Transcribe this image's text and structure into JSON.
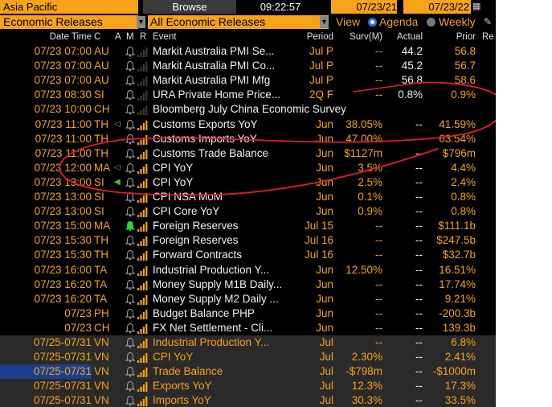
{
  "topbar": {
    "region": "Asia Pacific",
    "browse": "Browse",
    "time": "09:22:57",
    "date_from": "07/23/21",
    "date_to": "07/23/22"
  },
  "filters": {
    "category": "Economic Releases",
    "releases": "All Economic Releases",
    "view_label": "View",
    "agenda": "Agenda",
    "weekly": "Weekly"
  },
  "columns": {
    "datetime": "Date Time",
    "country": "C",
    "a": "A",
    "m": "M",
    "r": "R",
    "event": "Event",
    "period": "Period",
    "surv": "Surv(M)",
    "actual": "Actual",
    "prior": "Prior",
    "re": "Re"
  },
  "colors": {
    "orange": "#f7a21b",
    "white": "#f2f2f2",
    "highlight_bg": "#2a2a2a",
    "selected_bg": "#1b3f8f",
    "annotation": "#e8192c"
  },
  "rows": [
    {
      "dt": "07/23 07:00",
      "c": "AU",
      "alert": "bell",
      "bars": 0,
      "event": "Markit Australia PMI Se...",
      "period": "Jul P",
      "surv": "--",
      "actual": "44.2",
      "prior": "56.8"
    },
    {
      "dt": "07/23 07:00",
      "c": "AU",
      "alert": "bell",
      "bars": 0,
      "event": "Markit Australia PMI Co...",
      "period": "Jul P",
      "surv": "--",
      "actual": "45.2",
      "prior": "56.7"
    },
    {
      "dt": "07/23 07:00",
      "c": "AU",
      "alert": "bell",
      "bars": 0,
      "event": "Markit Australia PMI Mfg",
      "period": "Jul P",
      "surv": "--",
      "actual": "56.8",
      "prior": "58.6"
    },
    {
      "dt": "07/23 08:30",
      "c": "SI",
      "alert": "bell",
      "bars": 0,
      "event": "URA Private Home Price...",
      "period": "2Q F",
      "surv": "--",
      "actual": "0.8%",
      "prior": "0.9%"
    },
    {
      "dt": "07/23 10:00",
      "c": "CH",
      "alert": "bell",
      "bars": 0,
      "event": "Bloomberg July China Economic Survey",
      "period": "",
      "surv": "",
      "actual": "",
      "prior": ""
    },
    {
      "dt": "07/23 11:00",
      "c": "TH",
      "alert": "bell",
      "speaker": true,
      "bars": 4,
      "event": "Customs Exports YoY",
      "period": "Jun",
      "surv": "38.05%",
      "actual": "--",
      "prior": "41.59%"
    },
    {
      "dt": "07/23 11:00",
      "c": "TH",
      "alert": "bell",
      "bars": 4,
      "event": "Customs Imports YoY",
      "period": "Jun",
      "surv": "47.00%",
      "actual": "--",
      "prior": "63.54%"
    },
    {
      "dt": "07/23 11:00",
      "c": "TH",
      "alert": "bell",
      "bars": 4,
      "event": "Customs Trade Balance",
      "period": "Jun",
      "surv": "$1127m",
      "actual": "--",
      "prior": "$796m"
    },
    {
      "dt": "07/23 12:00",
      "c": "MA",
      "alert": "bell",
      "speaker": true,
      "bars": 4,
      "event": "CPI YoY",
      "period": "Jun",
      "surv": "3.5%",
      "actual": "--",
      "prior": "4.4%"
    },
    {
      "dt": "07/23 13:00",
      "c": "SI",
      "alert": "bell",
      "speaker": true,
      "speakerGreen": true,
      "bars": 4,
      "event": "CPI YoY",
      "period": "Jun",
      "surv": "2.5%",
      "actual": "--",
      "prior": "2.4%"
    },
    {
      "dt": "07/23 13:00",
      "c": "SI",
      "alert": "bell",
      "bars": 4,
      "event": "CPI NSA MoM",
      "period": "Jun",
      "surv": "0.1%",
      "actual": "--",
      "prior": "0.8%"
    },
    {
      "dt": "07/23 13:00",
      "c": "SI",
      "alert": "bell",
      "bars": 4,
      "event": "CPI Core YoY",
      "period": "Jun",
      "surv": "0.9%",
      "actual": "--",
      "prior": "0.8%"
    },
    {
      "dt": "07/23 15:00",
      "c": "MA",
      "alert": "bellGreen",
      "bars": 4,
      "event": "Foreign Reserves",
      "period": "Jul 15",
      "surv": "--",
      "actual": "--",
      "prior": "$111.1b"
    },
    {
      "dt": "07/23 15:30",
      "c": "TH",
      "alert": "bell",
      "bars": 4,
      "event": "Foreign Reserves",
      "period": "Jul 16",
      "surv": "--",
      "actual": "--",
      "prior": "$247.5b"
    },
    {
      "dt": "07/23 15:30",
      "c": "TH",
      "alert": "bell",
      "bars": 4,
      "event": "Forward Contracts",
      "period": "Jul 16",
      "surv": "--",
      "actual": "--",
      "prior": "$32.7b"
    },
    {
      "dt": "07/23 16:00",
      "c": "TA",
      "alert": "bell",
      "bars": 4,
      "event": "Industrial Production Y...",
      "period": "Jun",
      "surv": "12.50%",
      "actual": "--",
      "prior": "16.51%"
    },
    {
      "dt": "07/23 16:20",
      "c": "TA",
      "alert": "bell",
      "bars": 4,
      "event": "Money Supply M1B Daily...",
      "period": "Jun",
      "surv": "--",
      "actual": "--",
      "prior": "17.74%"
    },
    {
      "dt": "07/23 16:20",
      "c": "TA",
      "alert": "bell",
      "bars": 4,
      "event": "Money Supply M2 Daily ...",
      "period": "Jun",
      "surv": "--",
      "actual": "--",
      "prior": "9.21%"
    },
    {
      "dt": "07/23",
      "c": "PH",
      "alert": "bell",
      "bars": 4,
      "event": "Budget Balance PHP",
      "period": "Jun",
      "surv": "--",
      "actual": "--",
      "prior": "-200.3b"
    },
    {
      "dt": "07/23",
      "c": "CH",
      "alert": "bell",
      "bars": 4,
      "event": "FX Net Settlement - Cli...",
      "period": "Jun",
      "surv": "--",
      "actual": "--",
      "prior": "139.3b"
    },
    {
      "dt": "07/25-07/31",
      "c": "VN",
      "alert": "bell",
      "bars": 4,
      "event": "Industrial Production Y...",
      "period": "Jul",
      "surv": "--",
      "actual": "--",
      "prior": "6.8%",
      "highlight": true,
      "eventOrange": true
    },
    {
      "dt": "07/25-07/31",
      "c": "VN",
      "alert": "bell",
      "bars": 4,
      "event": "CPI YoY",
      "period": "Jul",
      "surv": "2.30%",
      "actual": "--",
      "prior": "2.41%",
      "highlight": true,
      "eventOrange": true
    },
    {
      "dt": "07/25-07/31",
      "c": "VN",
      "alert": "bell",
      "bars": 4,
      "event": "Trade Balance",
      "period": "Jul",
      "surv": "-$798m",
      "actual": "--",
      "prior": "-$1000m",
      "highlight": true,
      "eventOrange": true,
      "selected": true
    },
    {
      "dt": "07/25-07/31",
      "c": "VN",
      "alert": "bell",
      "bars": 4,
      "event": "Exports YoY",
      "period": "Jul",
      "surv": "12.3%",
      "actual": "--",
      "prior": "17.3%",
      "highlight": true,
      "eventOrange": true
    },
    {
      "dt": "07/25-07/31",
      "c": "VN",
      "alert": "bell",
      "bars": 4,
      "event": "Imports YoY",
      "period": "Jul",
      "surv": "30.3%",
      "actual": "--",
      "prior": "33.5%",
      "highlight": true,
      "eventOrange": true
    }
  ]
}
